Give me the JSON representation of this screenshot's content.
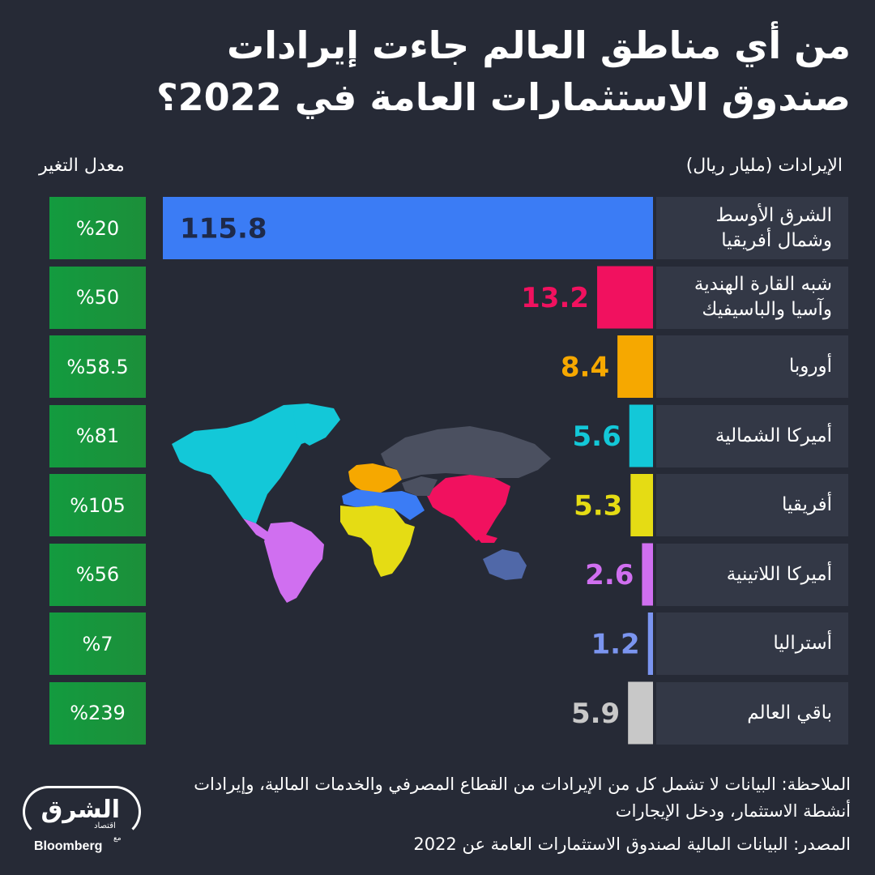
{
  "title_line1": "من أي مناطق العالم جاءت إيرادات",
  "title_line2": "صندوق الاستثمارات العامة في 2022؟",
  "revenue_header": "الإيرادات (مليار ريال)",
  "change_header": "معدل التغير",
  "chart_data": {
    "type": "bar",
    "orientation": "horizontal",
    "title": "من أي مناطق العالم جاءت إيرادات صندوق الاستثمارات العامة في 2022؟",
    "categories": [
      "الشرق الأوسط\nوشمال أفريقيا",
      "شبه القارة الهندية\nوآسيا والباسيفيك",
      "أوروبا",
      "أميركا الشمالية",
      "أفريقيا",
      "أميركا اللاتينية",
      "أستراليا",
      "باقي العالم"
    ],
    "values": [
      115.8,
      13.2,
      8.4,
      5.6,
      5.3,
      2.6,
      1.2,
      5.9
    ],
    "value_labels": [
      "115.8",
      "13.2",
      "8.4",
      "5.6",
      "5.3",
      "2.6",
      "1.2",
      "5.9"
    ],
    "change": [
      "%20",
      "%50",
      "%58.5",
      "%81",
      "%105",
      "%56",
      "%7",
      "%239"
    ],
    "colors": [
      "#3b7cf5",
      "#f1115f",
      "#f6a800",
      "#13c8d8",
      "#e5dc14",
      "#d06ff0",
      "#7b95f0",
      "#c8c8c8"
    ],
    "xlabel": "",
    "ylabel": "الإيرادات (مليار ريال)"
  },
  "map_colors": {
    "north_america": "#13c8d8",
    "latin_america": "#d06ff0",
    "europe": "#f6a800",
    "mena": "#3b7cf5",
    "africa": "#e5dc14",
    "asia_pacific": "#f1115f",
    "australia": "#5068a8",
    "rest_of_world": "#4b5060"
  },
  "note": "الملاحظة: البيانات لا تشمل كل من الإيرادات من القطاع المصرفي والخدمات المالية، وإيرادات أنشطة الاستثمار، ودخل الإيجارات",
  "source": "المصدر: البيانات المالية لصندوق الاستثمارات العامة عن 2022",
  "logo": {
    "name_ar": "الشرق",
    "sub_ar": "اقتصاد",
    "with_ar": "مع",
    "partner": "Bloomberg"
  }
}
